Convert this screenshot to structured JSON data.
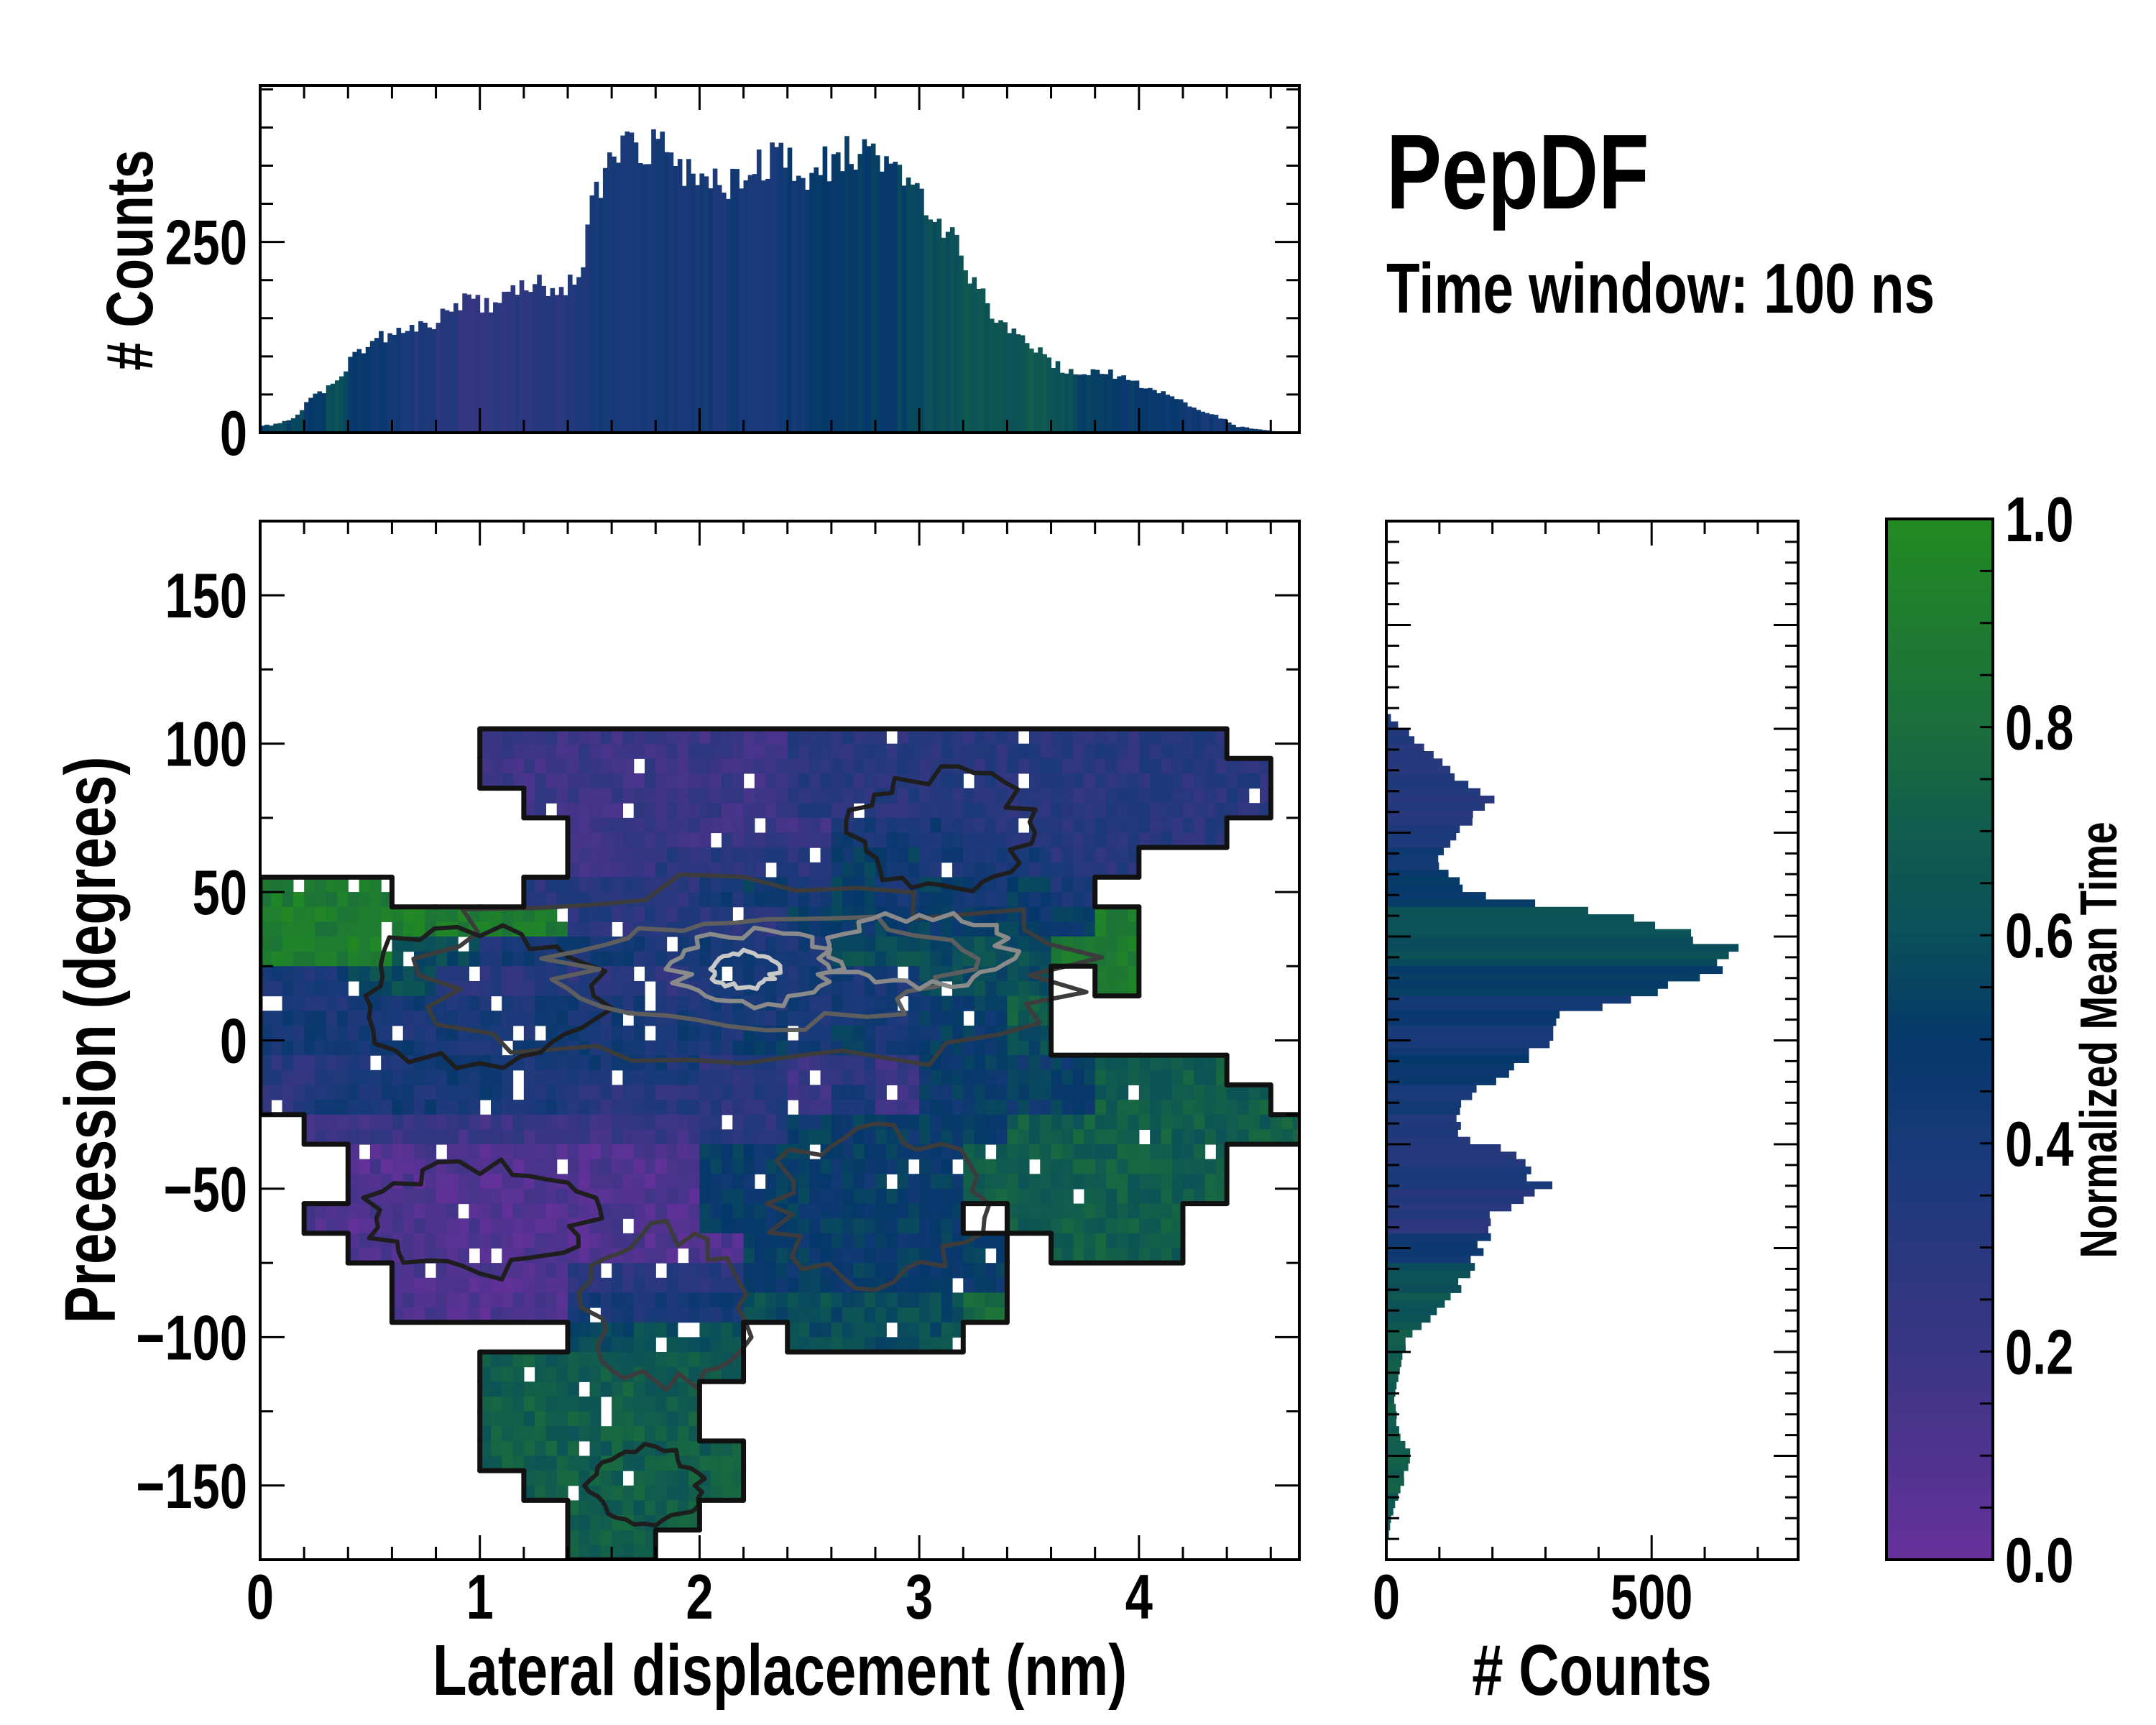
{
  "title": "PepDF",
  "subtitle": "Time window: 100 ns",
  "chart_data": {
    "type": "heatmap",
    "main": {
      "xlabel": "Lateral displacement (nm)",
      "ylabel": "Precession (degrees)",
      "xlim": [
        0,
        4.73
      ],
      "ylim": [
        -175,
        175
      ],
      "xticks": [
        0,
        1,
        2,
        3,
        4
      ],
      "xtick_labels": [
        "0",
        "1",
        "2",
        "3",
        "4"
      ],
      "yticks": [
        150,
        100,
        50,
        0,
        -50,
        -100,
        -150
      ],
      "ytick_labels": [
        "150",
        "100",
        "50",
        "0",
        "−50",
        "−100",
        "−150"
      ],
      "grid": {
        "x_bin": 0.2,
        "y_bin": 10,
        "x_start": 0,
        "y_top": 175,
        "value_scale": 0.1,
        "rows": [
          "........................",
          "........................",
          "........................",
          "........................",
          "........................",
          "........................",
          "........................",
          ".....22222223333333333..",
          ".....222222233333333333.",
          "......22222233333333333.",
          ".......222222444333333..",
          ".......2233335544433....",
          "999...3333454545454.....",
          "99999993333355555559....",
          "99966444444446666699....",
          "446633333344444666 9.....",
          "444444444444444557......",
          "444444444445454556......",
          "3344444444332325555777..",
          "34444443333324255557777.",
          ".22222222233555557777777",
          "..11111111555555777777..",
          "..11111111555555777777..",
          ".111111111555555.7777...",
          "..111111111555555.777....",
          "...11113333555555........",
          "...11114444666668........",
          ".......6666.6666........",
          ".....777777.............",
          ".....77777..............",
          ".....77777..............",
          ".....777777.............",
          "......77777.............",
          ".......777..............",
          ".......77..............."
        ]
      },
      "contours": [
        {
          "cx": 2.2,
          "cy": 22,
          "rx": 1.45,
          "ry": 30,
          "level": 1
        },
        {
          "cx": 1.0,
          "cy": 15,
          "rx": 0.55,
          "ry": 22,
          "level": 0
        },
        {
          "cx": 2.3,
          "cy": 24,
          "rx": 0.9,
          "ry": 18,
          "level": 2
        },
        {
          "cx": 3.0,
          "cy": 30,
          "rx": 0.4,
          "ry": 12,
          "level": 3
        },
        {
          "cx": 2.25,
          "cy": 24,
          "rx": 0.35,
          "ry": 12,
          "level": 3
        },
        {
          "cx": 2.2,
          "cy": 24,
          "rx": 0.15,
          "ry": 6,
          "level": 4
        },
        {
          "cx": 1.0,
          "cy": -60,
          "rx": 0.5,
          "ry": 18,
          "level": 0
        },
        {
          "cx": 2.8,
          "cy": -55,
          "rx": 0.45,
          "ry": 25,
          "level": 1
        },
        {
          "cx": 1.85,
          "cy": -90,
          "rx": 0.35,
          "ry": 25,
          "level": 1
        },
        {
          "cx": 3.1,
          "cy": 70,
          "rx": 0.4,
          "ry": 20,
          "level": 0
        },
        {
          "cx": 1.75,
          "cy": -150,
          "rx": 0.25,
          "ry": 12,
          "level": 0
        }
      ]
    },
    "top_histogram": {
      "ylabel": "# Counts",
      "ylim": [
        0,
        455
      ],
      "yticks": [
        0,
        250
      ],
      "ytick_labels": [
        "0",
        "250"
      ],
      "bin_width": 0.1,
      "x_start": 0,
      "counts": [
        10,
        19,
        49,
        66,
        109,
        126,
        128,
        139,
        158,
        173,
        169,
        183,
        196,
        173,
        214,
        334,
        382,
        379,
        366,
        334,
        322,
        328,
        347,
        363,
        341,
        347,
        366,
        366,
        369,
        344,
        284,
        252,
        202,
        142,
        129,
        110,
        82,
        82,
        79,
        69,
        60,
        47,
        33,
        22,
        8,
        4,
        1
      ],
      "mean_time": [
        0.55,
        0.55,
        0.5,
        0.6,
        0.5,
        0.45,
        0.4,
        0.35,
        0.3,
        0.25,
        0.25,
        0.28,
        0.3,
        0.32,
        0.33,
        0.4,
        0.4,
        0.4,
        0.4,
        0.4,
        0.4,
        0.4,
        0.4,
        0.4,
        0.45,
        0.5,
        0.5,
        0.52,
        0.52,
        0.55,
        0.6,
        0.62,
        0.65,
        0.65,
        0.66,
        0.68,
        0.6,
        0.55,
        0.5,
        0.5,
        0.48,
        0.45,
        0.45,
        0.42,
        0.45,
        0.5,
        0.7
      ]
    },
    "right_histogram": {
      "xlabel": "# Counts",
      "xlim": [
        0,
        776
      ],
      "xticks": [
        0,
        500
      ],
      "xtick_labels": [
        "0",
        "500"
      ],
      "bin_height": 10,
      "y_top": 175,
      "counts": [
        0,
        0,
        0,
        0,
        0,
        0,
        2,
        60,
        130,
        200,
        130,
        90,
        160,
        480,
        670,
        560,
        360,
        300,
        250,
        150,
        130,
        250,
        300,
        200,
        180,
        150,
        110,
        40,
        25,
        15,
        20,
        45,
        30,
        10,
        2
      ],
      "mean_time": [
        0.35,
        0.35,
        0.35,
        0.35,
        0.35,
        0.35,
        0.35,
        0.33,
        0.33,
        0.33,
        0.35,
        0.45,
        0.5,
        0.65,
        0.6,
        0.5,
        0.45,
        0.4,
        0.5,
        0.4,
        0.35,
        0.35,
        0.35,
        0.3,
        0.45,
        0.6,
        0.65,
        0.68,
        0.7,
        0.7,
        0.7,
        0.7,
        0.7,
        0.7,
        0.7
      ]
    },
    "colorbar": {
      "label": "Normalized Mean Time",
      "range": [
        0,
        1
      ],
      "ticks": [
        0,
        0.2,
        0.4,
        0.6,
        0.8,
        1.0
      ],
      "tick_labels": [
        "0.0",
        "0.2",
        "0.4",
        "0.6",
        "0.8",
        "1.0"
      ],
      "colormap": [
        "#67309c",
        "#4f338f",
        "#3a3585",
        "#28387c",
        "#173a78",
        "#05386a",
        "#0b4f5a",
        "#115c4e",
        "#1a6e3c",
        "#1e7c30",
        "#228b22"
      ]
    }
  }
}
